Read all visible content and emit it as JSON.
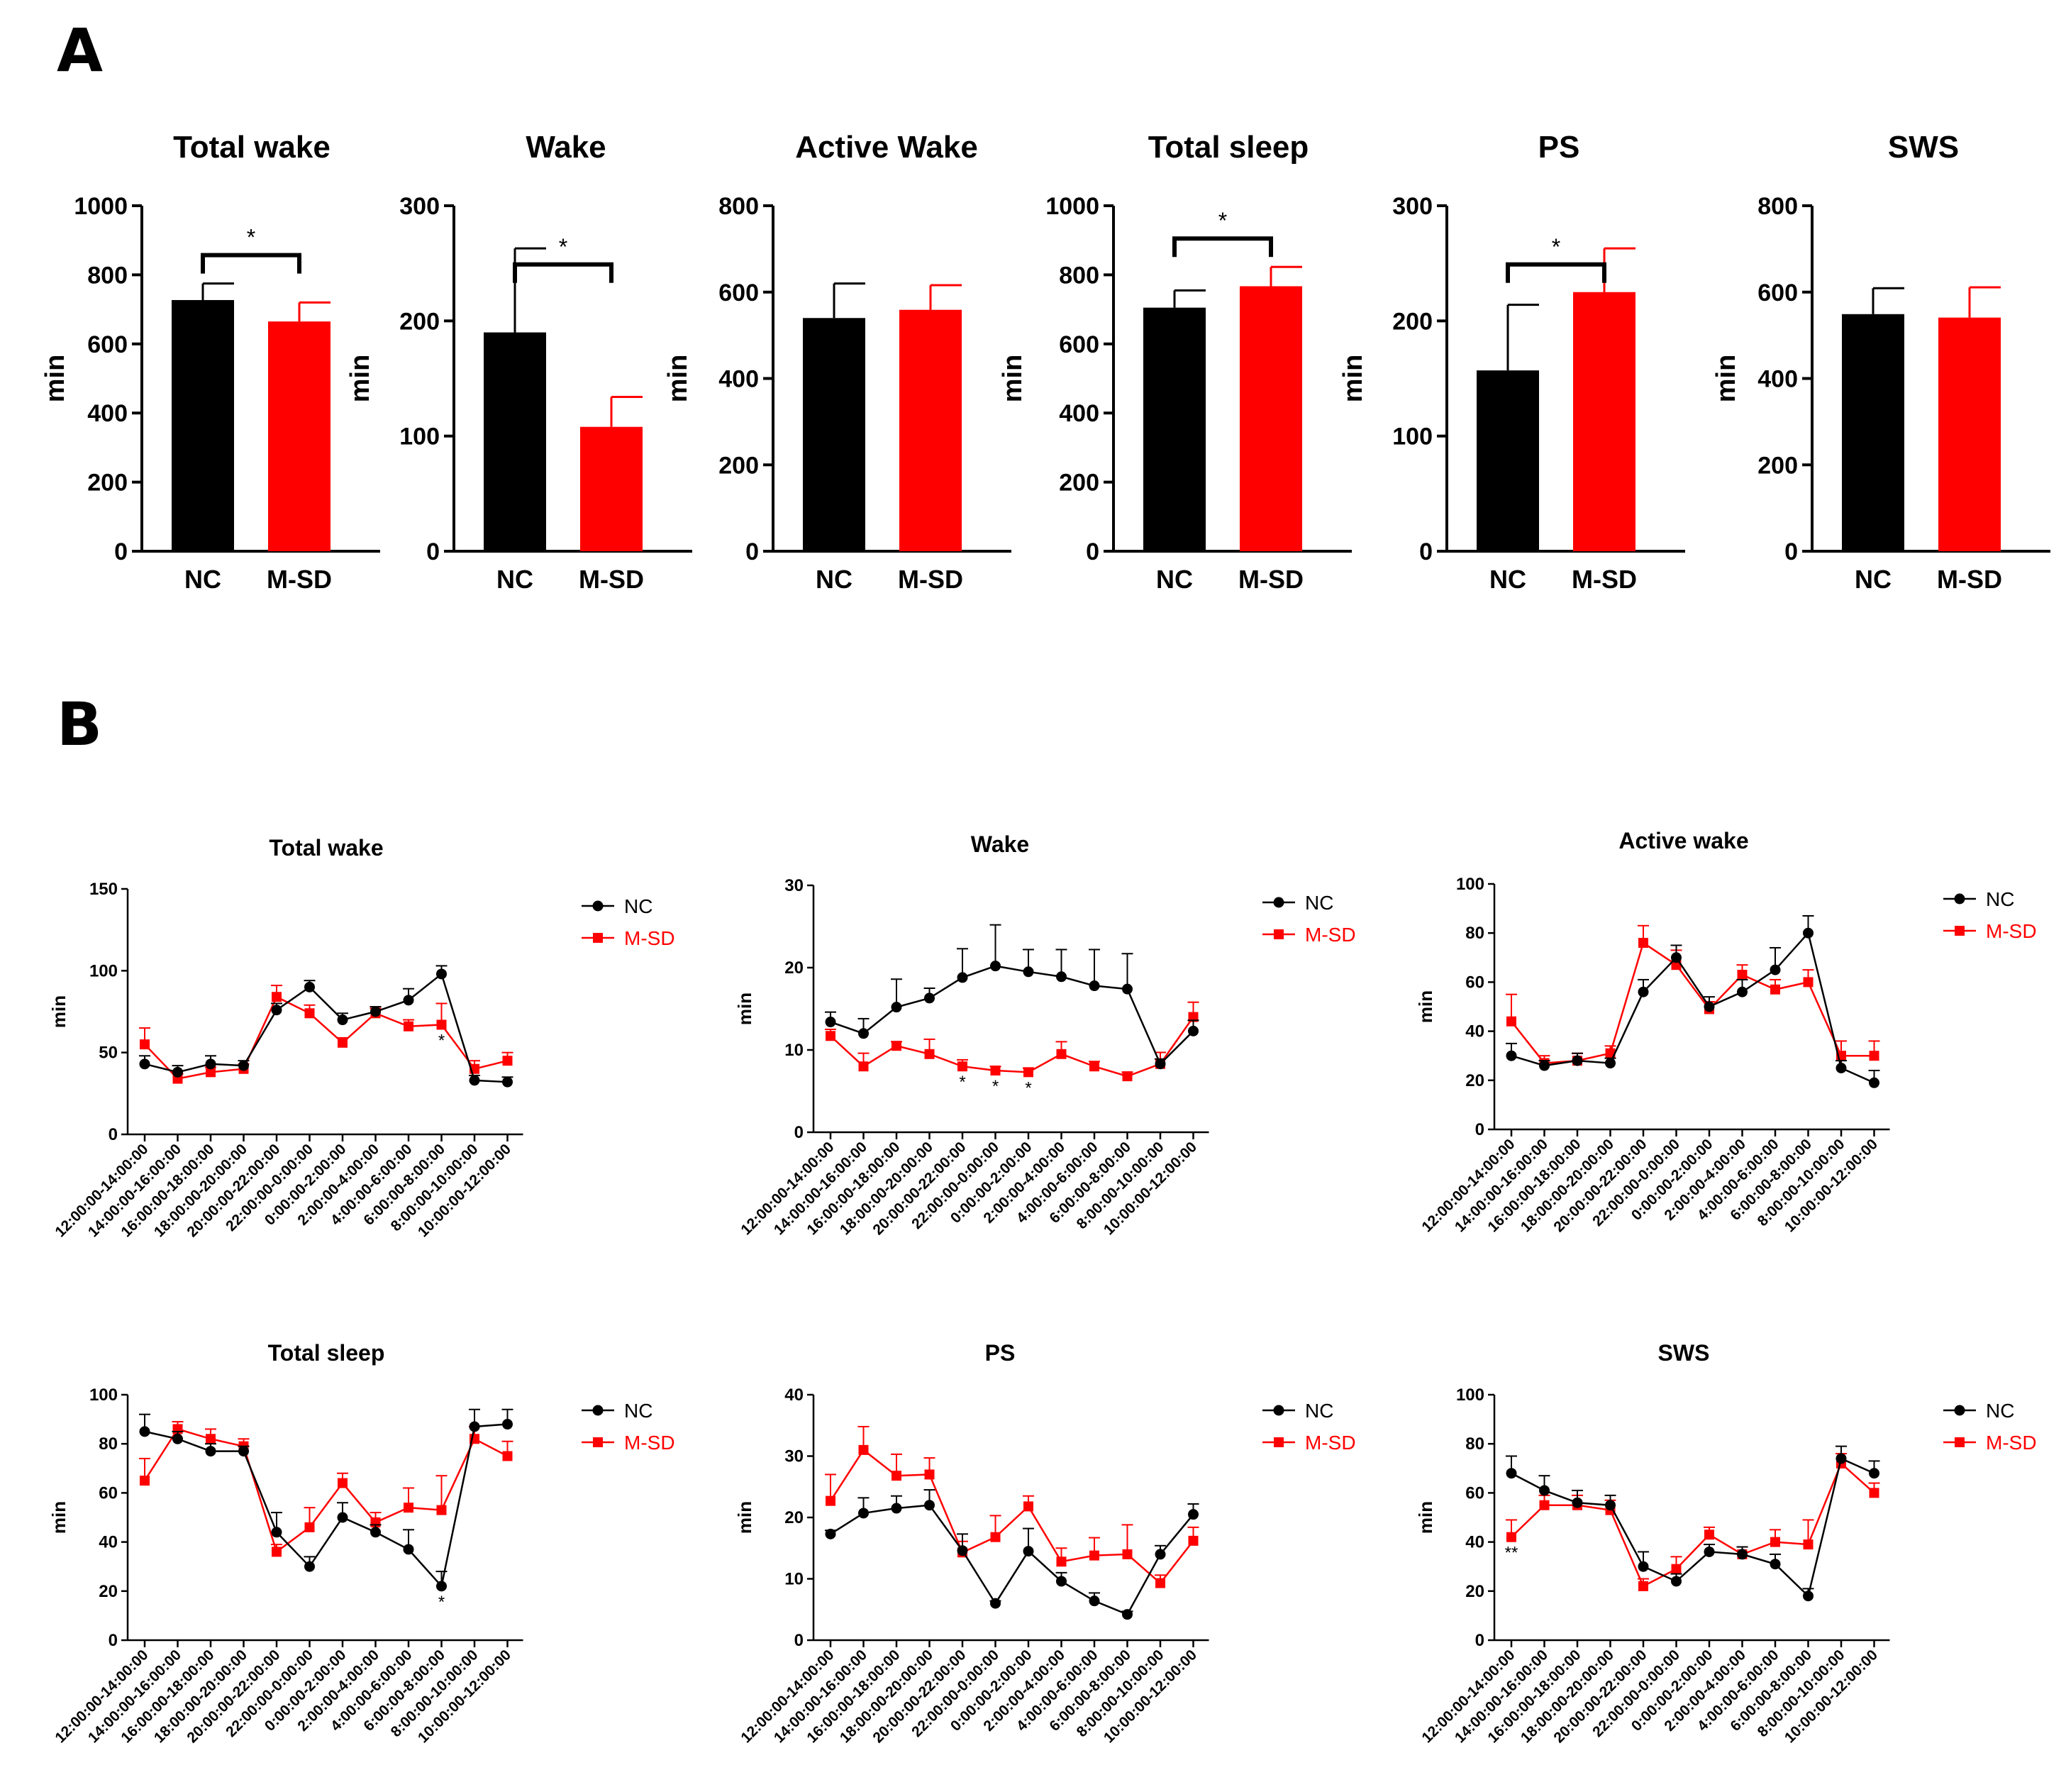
{
  "panels": {
    "a": "A",
    "b": "B"
  },
  "legend": {
    "nc": "NC",
    "msd": "M-SD"
  },
  "colors": {
    "nc": "#000000",
    "msd": "#ff0000"
  },
  "chart_data": [
    {
      "type": "bar",
      "panel": "A",
      "title": "Total wake",
      "ylabel": "min",
      "categories": [
        "NC",
        "M-SD"
      ],
      "values": [
        727,
        665
      ],
      "errors": [
        48,
        55
      ],
      "ylim": [
        0,
        1000
      ],
      "yticks": [
        0,
        200,
        400,
        600,
        800,
        1000
      ],
      "significance": "*"
    },
    {
      "type": "bar",
      "panel": "A",
      "title": "Wake",
      "ylabel": "min",
      "categories": [
        "NC",
        "M-SD"
      ],
      "values": [
        190,
        108
      ],
      "errors": [
        73,
        26
      ],
      "ylim": [
        0,
        300
      ],
      "yticks": [
        0,
        100,
        200,
        300
      ],
      "significance": "*"
    },
    {
      "type": "bar",
      "panel": "A",
      "title": "Active Wake",
      "ylabel": "min",
      "categories": [
        "NC",
        "M-SD"
      ],
      "values": [
        540,
        559
      ],
      "errors": [
        80,
        57
      ],
      "ylim": [
        0,
        800
      ],
      "yticks": [
        0,
        200,
        400,
        600,
        800
      ],
      "significance": ""
    },
    {
      "type": "bar",
      "panel": "A",
      "title": "Total sleep",
      "ylabel": "min",
      "categories": [
        "NC",
        "M-SD"
      ],
      "values": [
        705,
        767
      ],
      "errors": [
        50,
        56
      ],
      "ylim": [
        0,
        1000
      ],
      "yticks": [
        0,
        200,
        400,
        600,
        800,
        1000
      ],
      "significance": "*"
    },
    {
      "type": "bar",
      "panel": "A",
      "title": "PS",
      "ylabel": "min",
      "categories": [
        "NC",
        "M-SD"
      ],
      "values": [
        157,
        225
      ],
      "errors": [
        57,
        38
      ],
      "ylim": [
        0,
        300
      ],
      "yticks": [
        0,
        100,
        200,
        300
      ],
      "significance": "*"
    },
    {
      "type": "bar",
      "panel": "A",
      "title": "SWS",
      "ylabel": "min",
      "categories": [
        "NC",
        "M-SD"
      ],
      "values": [
        549,
        541
      ],
      "errors": [
        60,
        70
      ],
      "ylim": [
        0,
        800
      ],
      "yticks": [
        0,
        200,
        400,
        600,
        800
      ],
      "significance": ""
    },
    {
      "type": "line",
      "panel": "B",
      "title": "Total wake",
      "ylabel": "min",
      "ylim": [
        0,
        150
      ],
      "yticks": [
        0,
        50,
        100,
        150
      ],
      "x": [
        "12:00:00-14:00:00",
        "14:00:00-16:00:00",
        "16:00:00-18:00:00",
        "18:00:00-20:00:00",
        "20:00:00-22:00:00",
        "22:00:00-0:00:00",
        "0:00:00-2:00:00",
        "2:00:00-4:00:00",
        "4:00:00-6:00:00",
        "6:00:00-8:00:00",
        "8:00:00-10:00:00",
        "10:00:00-12:00:00"
      ],
      "series": [
        {
          "name": "NC",
          "values": [
            43,
            38,
            43,
            42,
            76,
            90,
            70,
            75,
            82,
            98,
            33,
            32
          ],
          "errors": [
            5,
            4,
            5,
            3,
            4,
            4,
            4,
            3,
            7,
            5,
            3,
            3
          ]
        },
        {
          "name": "M-SD",
          "values": [
            55,
            34,
            38,
            40,
            84,
            74,
            56,
            74,
            66,
            67,
            40,
            45
          ],
          "errors": [
            10,
            3,
            3,
            3,
            7,
            5,
            3,
            3,
            4,
            13,
            5,
            5
          ]
        }
      ],
      "stars": [
        {
          "index": 9,
          "label": "*"
        }
      ]
    },
    {
      "type": "line",
      "panel": "B",
      "title": "Wake",
      "ylabel": "min",
      "ylim": [
        0,
        30
      ],
      "yticks": [
        0,
        10,
        20,
        30
      ],
      "x": [
        "12:00:00-14:00:00",
        "14:00:00-16:00:00",
        "16:00:00-18:00:00",
        "18:00:00-20:00:00",
        "20:00:00-22:00:00",
        "22:00:00-0:00:00",
        "0:00:00-2:00:00",
        "2:00:00-4:00:00",
        "4:00:00-6:00:00",
        "6:00:00-8:00:00",
        "8:00:00-10:00:00",
        "10:00:00-12:00:00"
      ],
      "series": [
        {
          "name": "NC",
          "values": [
            13.4,
            12.0,
            15.2,
            16.3,
            18.8,
            20.2,
            19.5,
            18.9,
            17.8,
            17.4,
            8.3,
            12.3
          ],
          "errors": [
            1.2,
            1.8,
            3.4,
            1.2,
            3.5,
            5.0,
            2.7,
            3.3,
            4.4,
            4.3,
            0.6,
            1.3
          ]
        },
        {
          "name": "M-SD",
          "values": [
            11.7,
            8.0,
            10.5,
            9.5,
            8.0,
            7.5,
            7.3,
            9.5,
            8.0,
            6.8,
            8.3,
            14.0
          ],
          "errors": [
            0.8,
            1.6,
            0.5,
            1.8,
            0.8,
            0.5,
            0.5,
            1.5,
            0.6,
            0.5,
            1.4,
            1.8
          ]
        }
      ],
      "stars": [
        {
          "index": 4,
          "label": "*"
        },
        {
          "index": 5,
          "label": "*"
        },
        {
          "index": 6,
          "label": "*"
        }
      ]
    },
    {
      "type": "line",
      "panel": "B",
      "title": "Active wake",
      "ylabel": "min",
      "ylim": [
        0,
        100
      ],
      "yticks": [
        0,
        20,
        40,
        60,
        80,
        100
      ],
      "x": [
        "12:00:00-14:00:00",
        "14:00:00-16:00:00",
        "16:00:00-18:00:00",
        "18:00:00-20:00:00",
        "20:00:00-22:00:00",
        "22:00:00-0:00:00",
        "0:00:00-2:00:00",
        "2:00:00-4:00:00",
        "4:00:00-6:00:00",
        "6:00:00-8:00:00",
        "8:00:00-10:00:00",
        "10:00:00-12:00:00"
      ],
      "series": [
        {
          "name": "NC",
          "values": [
            30,
            26,
            28,
            27,
            56,
            70,
            50,
            56,
            65,
            80,
            25,
            19
          ],
          "errors": [
            5,
            2,
            3,
            2,
            5,
            5,
            4,
            5,
            9,
            7,
            3,
            5
          ]
        },
        {
          "name": "M-SD",
          "values": [
            44,
            27,
            28,
            31,
            76,
            67,
            49,
            63,
            57,
            60,
            30,
            30
          ],
          "errors": [
            11,
            3,
            3,
            3,
            7,
            6,
            3,
            4,
            4,
            5,
            6,
            6
          ]
        }
      ],
      "stars": []
    },
    {
      "type": "line",
      "panel": "B",
      "title": "Total sleep",
      "ylabel": "min",
      "ylim": [
        0,
        100
      ],
      "yticks": [
        0,
        20,
        40,
        60,
        80,
        100
      ],
      "x": [
        "12:00:00-14:00:00",
        "14:00:00-16:00:00",
        "16:00:00-18:00:00",
        "18:00:00-20:00:00",
        "20:00:00-22:00:00",
        "22:00:00-0:00:00",
        "0:00:00-2:00:00",
        "2:00:00-4:00:00",
        "4:00:00-6:00:00",
        "6:00:00-8:00:00",
        "8:00:00-10:00:00",
        "10:00:00-12:00:00"
      ],
      "series": [
        {
          "name": "NC",
          "values": [
            85,
            82,
            77,
            77,
            44,
            30,
            50,
            44,
            37,
            22,
            87,
            88
          ],
          "errors": [
            7,
            3,
            3,
            2,
            8,
            4,
            6,
            3,
            8,
            6,
            7,
            6
          ]
        },
        {
          "name": "M-SD",
          "values": [
            65,
            86,
            82,
            79,
            36,
            46,
            64,
            48,
            54,
            53,
            82,
            75
          ],
          "errors": [
            9,
            3,
            4,
            3,
            3,
            8,
            4,
            4,
            8,
            14,
            5,
            6
          ]
        }
      ],
      "stars": [
        {
          "index": 9,
          "label": "*"
        }
      ]
    },
    {
      "type": "line",
      "panel": "B",
      "title": "PS",
      "ylabel": "min",
      "ylim": [
        0,
        40
      ],
      "yticks": [
        0,
        10,
        20,
        30,
        40
      ],
      "x": [
        "12:00:00-14:00:00",
        "14:00:00-16:00:00",
        "16:00:00-18:00:00",
        "18:00:00-20:00:00",
        "20:00:00-22:00:00",
        "22:00:00-0:00:00",
        "0:00:00-2:00:00",
        "2:00:00-4:00:00",
        "4:00:00-6:00:00",
        "6:00:00-8:00:00",
        "8:00:00-10:00:00",
        "10:00:00-12:00:00"
      ],
      "series": [
        {
          "name": "NC",
          "values": [
            17.3,
            20.7,
            21.5,
            22.0,
            14.6,
            6.0,
            14.5,
            9.6,
            6.4,
            4.2,
            14.0,
            20.5
          ],
          "errors": [
            0.6,
            2.5,
            2.0,
            2.5,
            2.7,
            0.4,
            3.7,
            1.4,
            1.3,
            0.5,
            1.4,
            1.7
          ]
        },
        {
          "name": "M-SD",
          "values": [
            22.7,
            31.0,
            26.8,
            27.0,
            14.3,
            16.8,
            21.8,
            12.8,
            13.8,
            14.0,
            9.3,
            16.2
          ],
          "errors": [
            4.3,
            3.8,
            3.5,
            2.7,
            1.8,
            3.5,
            1.7,
            2.2,
            2.9,
            4.8,
            1.3,
            2.2
          ]
        }
      ],
      "stars": []
    },
    {
      "type": "line",
      "panel": "B",
      "title": "SWS",
      "ylabel": "min",
      "ylim": [
        0,
        100
      ],
      "yticks": [
        0,
        20,
        40,
        60,
        80,
        100
      ],
      "x": [
        "12:00:00-14:00:00",
        "14:00:00-16:00:00",
        "16:00:00-18:00:00",
        "18:00:00-20:00:00",
        "20:00:00-22:00:00",
        "22:00:00-0:00:00",
        "0:00:00-2:00:00",
        "2:00:00-4:00:00",
        "4:00:00-6:00:00",
        "6:00:00-8:00:00",
        "8:00:00-10:00:00",
        "10:00:00-12:00:00"
      ],
      "series": [
        {
          "name": "NC",
          "values": [
            68,
            61,
            56,
            55,
            30,
            24,
            36,
            35,
            31,
            18,
            74,
            68
          ],
          "errors": [
            7,
            6,
            5,
            4,
            6,
            3,
            3,
            3,
            4,
            3,
            5,
            5
          ]
        },
        {
          "name": "M-SD",
          "values": [
            42,
            55,
            55,
            53,
            22,
            29,
            43,
            35,
            40,
            39,
            72,
            60
          ],
          "errors": [
            7,
            4,
            4,
            4,
            3,
            5,
            3,
            3,
            5,
            10,
            4,
            4
          ]
        }
      ],
      "stars": [
        {
          "index": 0,
          "label": "**"
        }
      ]
    }
  ]
}
